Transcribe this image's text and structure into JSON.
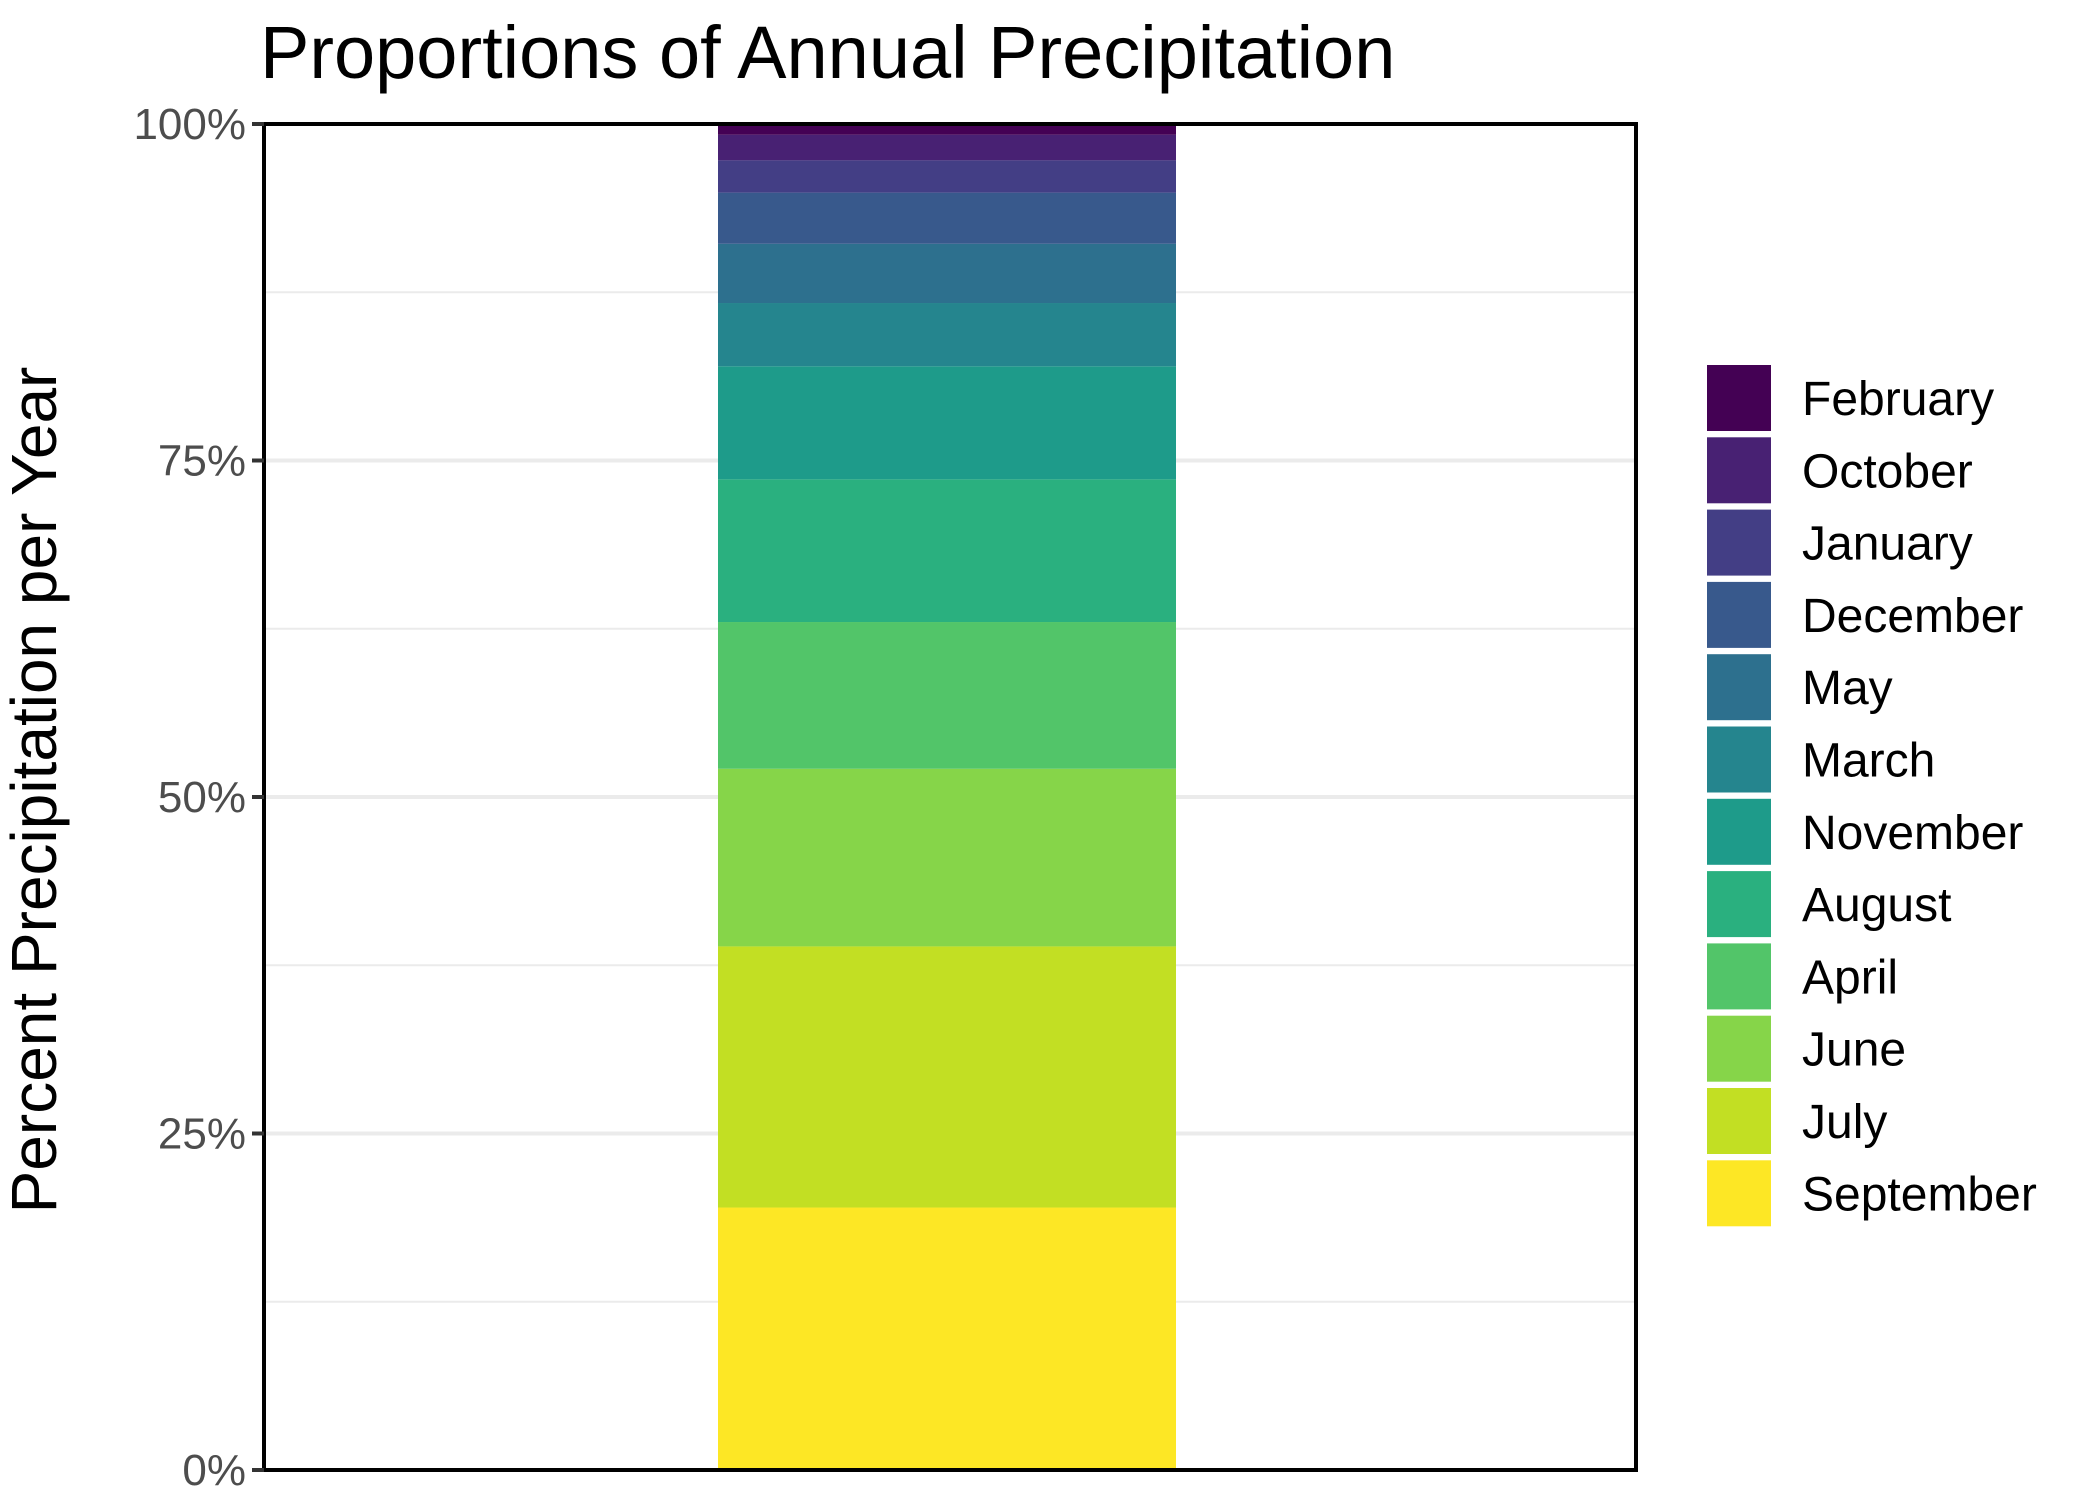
{
  "chart_data": {
    "type": "bar",
    "stacked": true,
    "normalized": true,
    "title": "Proportions of Annual Precipitation",
    "xlabel": "",
    "ylabel": "Percent Precipitation per Year",
    "ylim": [
      0,
      100
    ],
    "y_ticks": [
      "0%",
      "25%",
      "50%",
      "75%",
      "100%"
    ],
    "y_tick_values": [
      0,
      25,
      50,
      75,
      100
    ],
    "y_minor_gridlines": [
      12.5,
      37.5,
      62.5,
      87.5
    ],
    "grid": true,
    "legend_position": "right",
    "series": [
      {
        "name": "September",
        "value": 19.5,
        "color": "#FDE725"
      },
      {
        "name": "July",
        "value": 19.4,
        "color": "#C2DF23"
      },
      {
        "name": "June",
        "value": 13.2,
        "color": "#86D549"
      },
      {
        "name": "April",
        "value": 10.9,
        "color": "#52C569"
      },
      {
        "name": "August",
        "value": 10.6,
        "color": "#2AB07F"
      },
      {
        "name": "November",
        "value": 8.4,
        "color": "#1E9B8A"
      },
      {
        "name": "March",
        "value": 4.7,
        "color": "#25858E"
      },
      {
        "name": "May",
        "value": 4.4,
        "color": "#2D708E"
      },
      {
        "name": "December",
        "value": 3.8,
        "color": "#38598C"
      },
      {
        "name": "January",
        "value": 2.4,
        "color": "#433E85"
      },
      {
        "name": "October",
        "value": 1.9,
        "color": "#482173"
      },
      {
        "name": "February",
        "value": 0.8,
        "color": "#440154"
      }
    ],
    "legend": [
      "February",
      "October",
      "January",
      "December",
      "May",
      "March",
      "November",
      "August",
      "April",
      "June",
      "July",
      "September"
    ]
  }
}
